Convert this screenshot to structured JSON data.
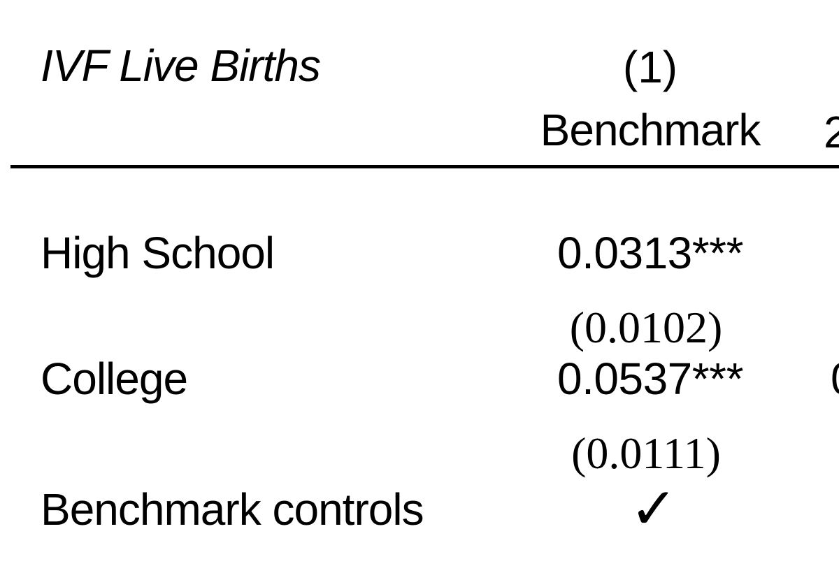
{
  "table": {
    "header": {
      "depvar_label": "IVF Live Births",
      "column1": {
        "number": "(1)",
        "name": "Benchmark"
      },
      "column2_partial_number": "2"
    },
    "rows": [
      {
        "label": "High School",
        "col1_coef": "0.0313",
        "col1_stars": "***",
        "col1_se": "(0.0102)"
      },
      {
        "label": "College",
        "col1_coef": "0.0537",
        "col1_stars": "***",
        "col1_se": "(0.0111)",
        "col2_partial_coef": "0"
      },
      {
        "label": "Benchmark controls",
        "col1_check": "✓"
      }
    ],
    "colors": {
      "text": "#000000",
      "background": "#ffffff",
      "rule": "#000000"
    }
  }
}
